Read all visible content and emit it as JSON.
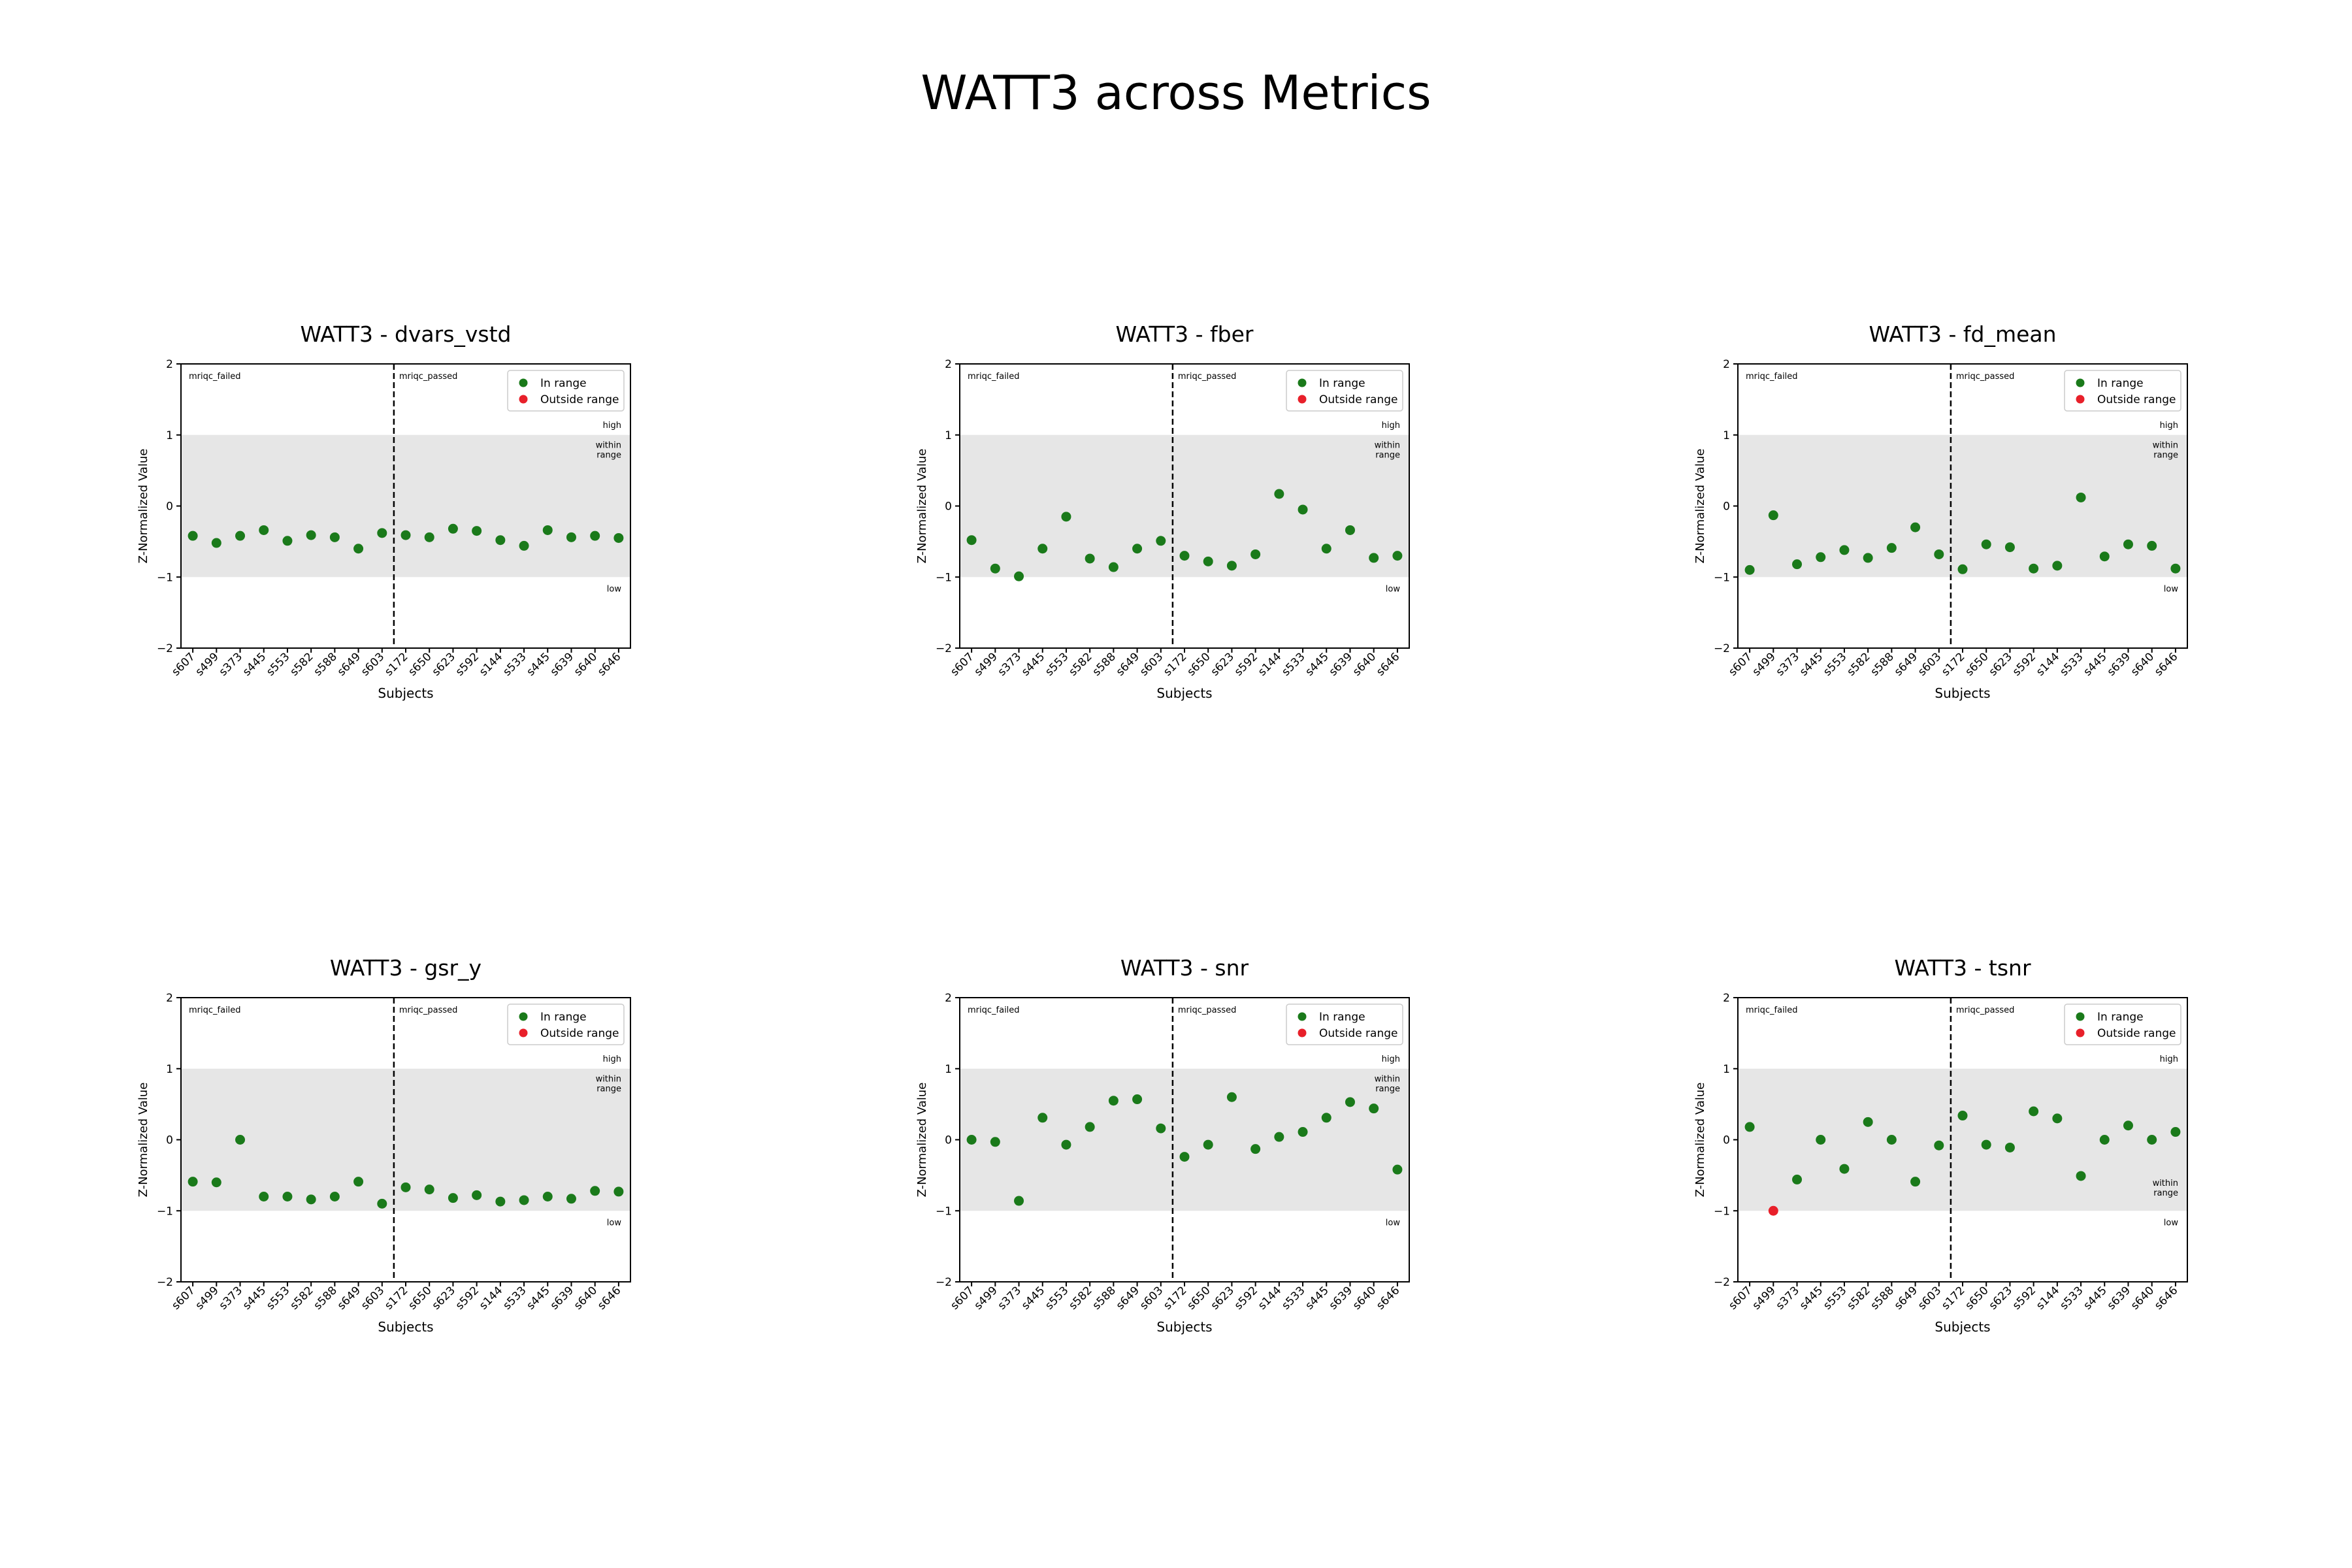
{
  "figure": {
    "title": "WATT3 across Metrics",
    "colors": {
      "in_range": "#1a7a1a",
      "outside_range": "#e8202a",
      "band": "#e6e6e6",
      "axis": "#000000"
    }
  },
  "chart_data": [
    {
      "type": "scatter",
      "title": "WATT3 - dvars_vstd",
      "xlabel": "Subjects",
      "ylabel": "Z-Normalized Value",
      "ylim": [
        -2,
        2
      ],
      "yticks": [
        -2,
        -1,
        0,
        1,
        2
      ],
      "ytick_labels": [
        "−2",
        "−1",
        "0",
        "1",
        "2"
      ],
      "within_range_band": [
        -1,
        1
      ],
      "band_labels": {
        "high": "high",
        "within": [
          "within",
          "range"
        ],
        "low": "low"
      },
      "group_labels": [
        "mriqc_failed",
        "mriqc_passed"
      ],
      "divider_after_index": 8,
      "legend": [
        "In range",
        "Outside range"
      ],
      "categories": [
        "s607",
        "s499",
        "s373",
        "s445",
        "s553",
        "s582",
        "s588",
        "s649",
        "s603",
        "s172",
        "s650",
        "s623",
        "s592",
        "s144",
        "s533",
        "s445",
        "s639",
        "s640",
        "s646"
      ],
      "values": [
        -0.42,
        -0.52,
        -0.42,
        -0.34,
        -0.49,
        -0.41,
        -0.44,
        -0.6,
        -0.38,
        -0.41,
        -0.44,
        -0.32,
        -0.35,
        -0.48,
        -0.56,
        -0.34,
        -0.44,
        -0.42,
        -0.45
      ],
      "outside": []
    },
    {
      "type": "scatter",
      "title": "WATT3 - fber",
      "xlabel": "Subjects",
      "ylabel": "Z-Normalized Value",
      "ylim": [
        -2,
        2
      ],
      "yticks": [
        -2,
        -1,
        0,
        1,
        2
      ],
      "ytick_labels": [
        "−2",
        "−1",
        "0",
        "1",
        "2"
      ],
      "within_range_band": [
        -1,
        1
      ],
      "band_labels": {
        "high": "high",
        "within": [
          "within",
          "range"
        ],
        "low": "low"
      },
      "group_labels": [
        "mriqc_failed",
        "mriqc_passed"
      ],
      "divider_after_index": 8,
      "legend": [
        "In range",
        "Outside range"
      ],
      "categories": [
        "s607",
        "s499",
        "s373",
        "s445",
        "s553",
        "s582",
        "s588",
        "s649",
        "s603",
        "s172",
        "s650",
        "s623",
        "s592",
        "s144",
        "s533",
        "s445",
        "s639",
        "s640",
        "s646"
      ],
      "values": [
        -0.48,
        -0.88,
        -0.99,
        -0.6,
        -0.15,
        -0.74,
        -0.86,
        -0.6,
        -0.49,
        -0.7,
        -0.78,
        -0.84,
        -0.68,
        0.17,
        -0.05,
        -0.6,
        -0.34,
        -0.73,
        -0.7
      ],
      "outside": []
    },
    {
      "type": "scatter",
      "title": "WATT3 - fd_mean",
      "xlabel": "Subjects",
      "ylabel": "Z-Normalized Value",
      "ylim": [
        -2,
        2
      ],
      "yticks": [
        -2,
        -1,
        0,
        1,
        2
      ],
      "ytick_labels": [
        "−2",
        "−1",
        "0",
        "1",
        "2"
      ],
      "within_range_band": [
        -1,
        1
      ],
      "band_labels": {
        "high": "high",
        "within": [
          "within",
          "range"
        ],
        "low": "low"
      },
      "group_labels": [
        "mriqc_failed",
        "mriqc_passed"
      ],
      "divider_after_index": 8,
      "legend": [
        "In range",
        "Outside range"
      ],
      "categories": [
        "s607",
        "s499",
        "s373",
        "s445",
        "s553",
        "s582",
        "s588",
        "s649",
        "s603",
        "s172",
        "s650",
        "s623",
        "s592",
        "s144",
        "s533",
        "s445",
        "s639",
        "s640",
        "s646"
      ],
      "values": [
        -0.9,
        -0.13,
        -0.82,
        -0.72,
        -0.62,
        -0.73,
        -0.59,
        -0.3,
        -0.68,
        -0.89,
        -0.54,
        -0.58,
        -0.88,
        -0.84,
        0.12,
        -0.71,
        -0.54,
        -0.56,
        -0.88
      ],
      "outside": []
    },
    {
      "type": "scatter",
      "title": "WATT3 - gsr_y",
      "xlabel": "Subjects",
      "ylabel": "Z-Normalized Value",
      "ylim": [
        -2,
        2
      ],
      "yticks": [
        -2,
        -1,
        0,
        1,
        2
      ],
      "ytick_labels": [
        "−2",
        "−1",
        "0",
        "1",
        "2"
      ],
      "within_range_band": [
        -1,
        1
      ],
      "band_labels": {
        "high": "high",
        "within": [
          "within",
          "range"
        ],
        "low": "low"
      },
      "group_labels": [
        "mriqc_failed",
        "mriqc_passed"
      ],
      "divider_after_index": 8,
      "legend": [
        "In range",
        "Outside range"
      ],
      "categories": [
        "s607",
        "s499",
        "s373",
        "s445",
        "s553",
        "s582",
        "s588",
        "s649",
        "s603",
        "s172",
        "s650",
        "s623",
        "s592",
        "s144",
        "s533",
        "s445",
        "s639",
        "s640",
        "s646"
      ],
      "values": [
        -0.59,
        -0.6,
        0.0,
        -0.8,
        -0.8,
        -0.84,
        -0.8,
        -0.59,
        -0.9,
        -0.67,
        -0.7,
        -0.82,
        -0.78,
        -0.87,
        -0.85,
        -0.8,
        -0.83,
        -0.72,
        -0.73
      ],
      "outside": []
    },
    {
      "type": "scatter",
      "title": "WATT3 - snr",
      "xlabel": "Subjects",
      "ylabel": "Z-Normalized Value",
      "ylim": [
        -2,
        2
      ],
      "yticks": [
        -2,
        -1,
        0,
        1,
        2
      ],
      "ytick_labels": [
        "−2",
        "−1",
        "0",
        "1",
        "2"
      ],
      "within_range_band": [
        -1,
        1
      ],
      "band_labels": {
        "high": "high",
        "within": [
          "within",
          "range"
        ],
        "low": "low"
      },
      "group_labels": [
        "mriqc_failed",
        "mriqc_passed"
      ],
      "divider_after_index": 8,
      "legend": [
        "In range",
        "Outside range"
      ],
      "categories": [
        "s607",
        "s499",
        "s373",
        "s445",
        "s553",
        "s582",
        "s588",
        "s649",
        "s603",
        "s172",
        "s650",
        "s623",
        "s592",
        "s144",
        "s533",
        "s445",
        "s639",
        "s640",
        "s646"
      ],
      "values": [
        0.0,
        -0.03,
        -0.86,
        0.31,
        -0.07,
        0.18,
        0.55,
        0.57,
        0.16,
        -0.24,
        -0.07,
        0.6,
        -0.13,
        0.04,
        0.11,
        0.31,
        0.53,
        0.44,
        -0.42
      ],
      "outside": []
    },
    {
      "type": "scatter",
      "title": "WATT3 - tsnr",
      "xlabel": "Subjects",
      "ylabel": "Z-Normalized Value",
      "ylim": [
        -2,
        2
      ],
      "yticks": [
        -2,
        -1,
        0,
        1,
        2
      ],
      "ytick_labels": [
        "−2",
        "−1",
        "0",
        "1",
        "2"
      ],
      "within_range_band": [
        -1,
        1
      ],
      "band_labels": {
        "high": "high",
        "within": [
          "within",
          "range"
        ],
        "low": "low"
      },
      "group_labels": [
        "mriqc_failed",
        "mriqc_passed"
      ],
      "divider_after_index": 8,
      "legend": [
        "In range",
        "Outside range"
      ],
      "categories": [
        "s607",
        "s499",
        "s373",
        "s445",
        "s553",
        "s582",
        "s588",
        "s649",
        "s603",
        "s172",
        "s650",
        "s623",
        "s592",
        "s144",
        "s533",
        "s445",
        "s639",
        "s640",
        "s646"
      ],
      "values": [
        0.18,
        -1.0,
        -0.56,
        0.0,
        -0.41,
        0.25,
        0.0,
        -0.59,
        -0.08,
        0.34,
        -0.07,
        -0.11,
        0.4,
        0.3,
        -0.51,
        0.0,
        0.2,
        0.0,
        0.11
      ],
      "outside": [
        1
      ]
    }
  ]
}
